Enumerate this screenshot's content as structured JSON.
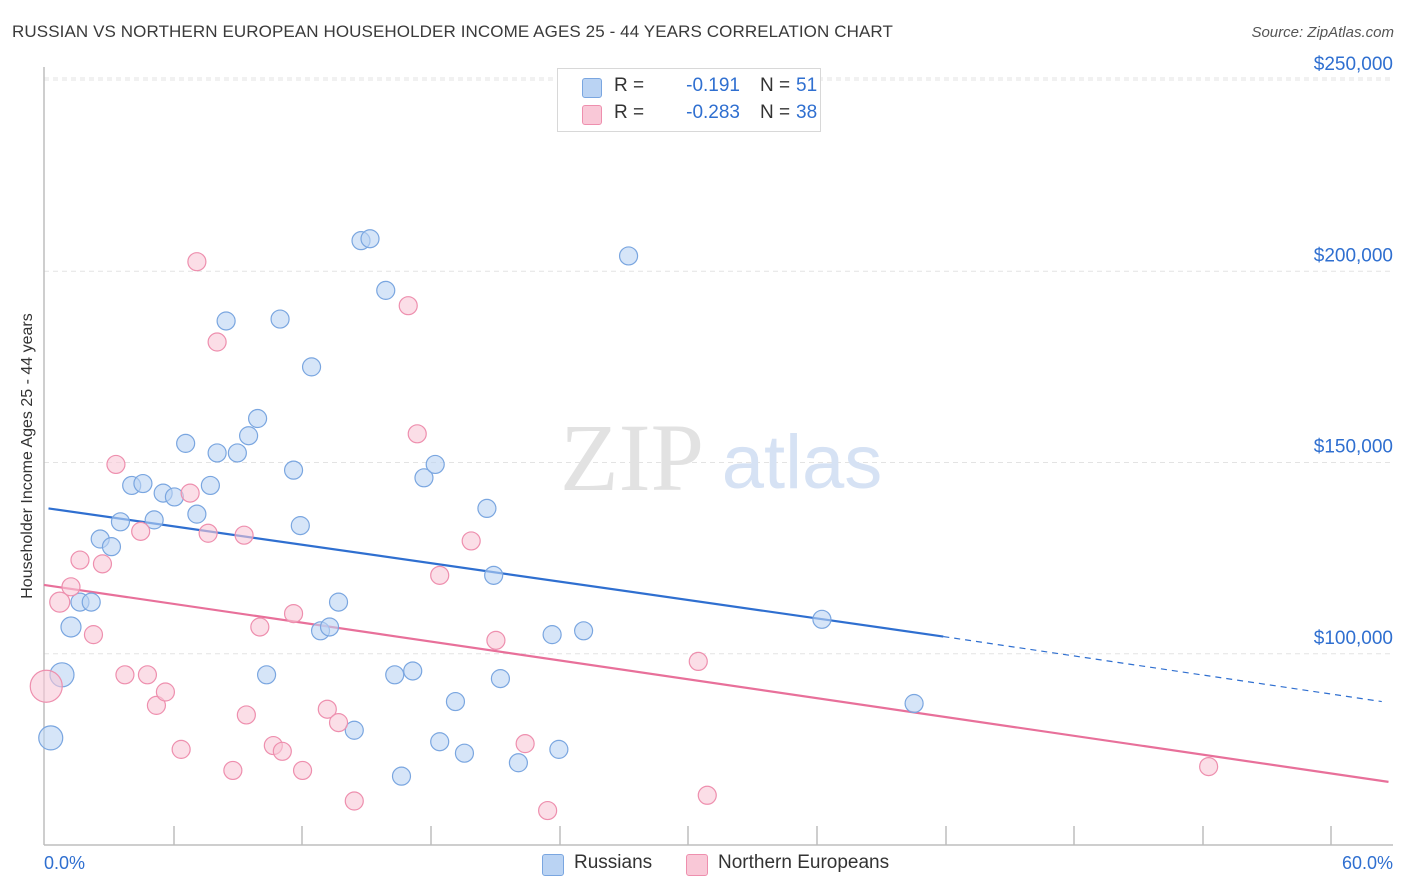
{
  "header": {
    "title": "RUSSIAN VS NORTHERN EUROPEAN HOUSEHOLDER INCOME AGES 25 - 44 YEARS CORRELATION CHART",
    "source": "Source: ZipAtlas.com"
  },
  "watermark": {
    "zip": "ZIP",
    "atlas": "atlas"
  },
  "legend": {
    "r_label": "R =",
    "n_label": "N =",
    "rows": [
      {
        "r": "-0.191",
        "n": "51",
        "fill": "#bad3f3",
        "stroke": "#7aa6e0"
      },
      {
        "r": "-0.283",
        "n": "38",
        "fill": "#f9c8d7",
        "stroke": "#ee8fae"
      }
    ]
  },
  "chart_data": {
    "type": "scatter",
    "title": "RUSSIAN VS NORTHERN EUROPEAN HOUSEHOLDER INCOME AGES 25 - 44 YEARS CORRELATION CHART",
    "xlabel": "",
    "ylabel": "Householder Income Ages 25 - 44 years",
    "xlim": [
      0,
      60
    ],
    "ylim": [
      57000,
      260000
    ],
    "x_tick_labels": [
      "0.0%",
      "60.0%"
    ],
    "y_ticks": [
      100000,
      150000,
      200000,
      250000
    ],
    "y_tick_labels": [
      "$100,000",
      "$150,000",
      "$200,000",
      "$250,000"
    ],
    "grid": "horizontal dashed",
    "legend_position": "top-center",
    "series": [
      {
        "name": "Russians",
        "color": "#2f6fd0",
        "fill": "#bad3f3",
        "stroke": "#7aa6e0",
        "points": [
          [
            0.3,
            78000,
            12
          ],
          [
            0.8,
            94500,
            12
          ],
          [
            1.2,
            107000,
            10
          ],
          [
            1.6,
            113500,
            9
          ],
          [
            2.1,
            113500,
            9
          ],
          [
            2.5,
            130000,
            9
          ],
          [
            3.0,
            128000,
            9
          ],
          [
            3.4,
            134500,
            9
          ],
          [
            3.9,
            144000,
            9
          ],
          [
            4.4,
            144500,
            9
          ],
          [
            4.9,
            135000,
            9
          ],
          [
            5.3,
            142000,
            9
          ],
          [
            5.8,
            141000,
            9
          ],
          [
            6.3,
            155000,
            9
          ],
          [
            6.8,
            136500,
            9
          ],
          [
            7.4,
            144000,
            9
          ],
          [
            7.7,
            152500,
            9
          ],
          [
            8.1,
            187000,
            9
          ],
          [
            8.6,
            152500,
            9
          ],
          [
            9.1,
            157000,
            9
          ],
          [
            9.5,
            161500,
            9
          ],
          [
            9.9,
            94500,
            9
          ],
          [
            10.5,
            187500,
            9
          ],
          [
            11.1,
            148000,
            9
          ],
          [
            11.4,
            133500,
            9
          ],
          [
            11.9,
            175000,
            9
          ],
          [
            12.3,
            106000,
            9
          ],
          [
            12.7,
            107000,
            9
          ],
          [
            13.1,
            113500,
            9
          ],
          [
            13.8,
            80000,
            9
          ],
          [
            14.1,
            208000,
            9
          ],
          [
            14.5,
            208500,
            9
          ],
          [
            15.2,
            195000,
            9
          ],
          [
            15.6,
            94500,
            9
          ],
          [
            15.9,
            68000,
            9
          ],
          [
            16.4,
            95500,
            9
          ],
          [
            16.9,
            146000,
            9
          ],
          [
            17.4,
            149500,
            9
          ],
          [
            17.6,
            77000,
            9
          ],
          [
            18.3,
            87500,
            9
          ],
          [
            18.7,
            74000,
            9
          ],
          [
            19.7,
            138000,
            9
          ],
          [
            20.0,
            120500,
            9
          ],
          [
            20.3,
            93500,
            9
          ],
          [
            21.1,
            71500,
            9
          ],
          [
            22.6,
            105000,
            9
          ],
          [
            22.9,
            75000,
            9
          ],
          [
            24.0,
            106000,
            9
          ],
          [
            26.0,
            204000,
            9
          ],
          [
            34.6,
            109000,
            9
          ],
          [
            38.7,
            87000,
            9
          ]
        ],
        "trend": {
          "x0": 0.2,
          "y0": 138000,
          "x1": 40.0,
          "y1": 104500,
          "x_dash_end": 59.5,
          "y_dash_end": 87500
        }
      },
      {
        "name": "Northern Europeans",
        "color": "#e8709a",
        "fill": "#f9c8d7",
        "stroke": "#ee8fae",
        "points": [
          [
            0.1,
            91500,
            16
          ],
          [
            0.7,
            113500,
            10
          ],
          [
            1.2,
            117500,
            9
          ],
          [
            1.6,
            124500,
            9
          ],
          [
            2.2,
            105000,
            9
          ],
          [
            2.6,
            123500,
            9
          ],
          [
            3.2,
            149500,
            9
          ],
          [
            3.6,
            94500,
            9
          ],
          [
            4.3,
            132000,
            9
          ],
          [
            4.6,
            94500,
            9
          ],
          [
            5.0,
            86500,
            9
          ],
          [
            5.4,
            90000,
            9
          ],
          [
            6.1,
            75000,
            9
          ],
          [
            6.5,
            142000,
            9
          ],
          [
            6.8,
            202500,
            9
          ],
          [
            7.3,
            131500,
            9
          ],
          [
            7.7,
            181500,
            9
          ],
          [
            8.4,
            69500,
            9
          ],
          [
            8.9,
            131000,
            9
          ],
          [
            9.0,
            84000,
            9
          ],
          [
            9.6,
            107000,
            9
          ],
          [
            10.2,
            76000,
            9
          ],
          [
            10.6,
            74500,
            9
          ],
          [
            11.1,
            110500,
            9
          ],
          [
            11.5,
            69500,
            9
          ],
          [
            12.6,
            85500,
            9
          ],
          [
            13.1,
            82000,
            9
          ],
          [
            13.8,
            61500,
            9
          ],
          [
            16.2,
            191000,
            9
          ],
          [
            16.6,
            157500,
            9
          ],
          [
            17.6,
            120500,
            9
          ],
          [
            19.0,
            129500,
            9
          ],
          [
            20.1,
            103500,
            9
          ],
          [
            21.4,
            76500,
            9
          ],
          [
            22.4,
            59000,
            9
          ],
          [
            29.1,
            98000,
            9
          ],
          [
            29.5,
            63000,
            9
          ],
          [
            51.8,
            70500,
            9
          ]
        ],
        "trend": {
          "x0": 0.0,
          "y0": 118000,
          "x1": 59.8,
          "y1": 66500
        }
      }
    ]
  }
}
